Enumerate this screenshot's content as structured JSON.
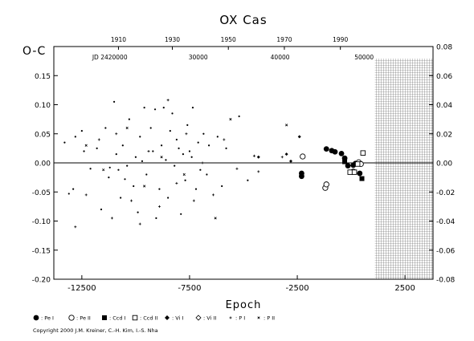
{
  "chart_data": {
    "type": "scatter",
    "title": "OX Cas",
    "ylabel_left": "O-C",
    "xlabel": "Epoch",
    "copyright": "Copyright 2000 J.M. Kreiner, C.-H. Kim, I.-S. Nha",
    "xlim": [
      -13800,
      3800
    ],
    "ylim_left": [
      -0.2,
      0.2
    ],
    "ylim_right": [
      -0.08,
      0.08
    ],
    "grid": false,
    "x_ticks": [
      {
        "value": -12500,
        "label": "-12500"
      },
      {
        "value": -7500,
        "label": "-7500"
      },
      {
        "value": -2500,
        "label": "-2500"
      },
      {
        "value": 2500,
        "label": "2500"
      }
    ],
    "y_ticks_left": [
      {
        "value": 0.15,
        "label": "0.15"
      },
      {
        "value": 0.1,
        "label": "0.10"
      },
      {
        "value": 0.05,
        "label": "0.05"
      },
      {
        "value": 0.0,
        "label": "0.00"
      },
      {
        "value": -0.05,
        "label": "-0.05"
      },
      {
        "value": -0.1,
        "label": "-0.10"
      },
      {
        "value": -0.15,
        "label": "-0.15"
      },
      {
        "value": -0.2,
        "label": "-0.20"
      }
    ],
    "y_ticks_right": [
      {
        "value": 0.08,
        "label": "0.08"
      },
      {
        "value": 0.06,
        "label": "0.06"
      },
      {
        "value": 0.04,
        "label": "0.04"
      },
      {
        "value": 0.02,
        "label": "0.02"
      },
      {
        "value": 0.0,
        "label": "0.00"
      },
      {
        "value": -0.02,
        "label": "-0.02"
      },
      {
        "value": -0.04,
        "label": "-0.04"
      },
      {
        "value": -0.06,
        "label": "-0.06"
      },
      {
        "value": -0.08,
        "label": "-0.08"
      }
    ],
    "year_ticks": [
      {
        "epoch": -10800,
        "label": "1910"
      },
      {
        "epoch": -8300,
        "label": "1930"
      },
      {
        "epoch": -5700,
        "label": "1950"
      },
      {
        "epoch": -3100,
        "label": "1970"
      },
      {
        "epoch": -500,
        "label": "1990"
      }
    ],
    "jd_ticks": [
      {
        "epoch": -11200,
        "label": "JD 2420000"
      },
      {
        "epoch": -7100,
        "label": "30000"
      },
      {
        "epoch": -3300,
        "label": "40000"
      },
      {
        "epoch": 600,
        "label": "50000"
      }
    ],
    "hatched_region": {
      "x_from": 1100,
      "x_to": 3800
    },
    "legend": [
      {
        "symbol": "filled-circle",
        "label": ": Pe I"
      },
      {
        "symbol": "open-circle",
        "label": ": Pe II"
      },
      {
        "symbol": "filled-square",
        "label": ": Ccd I"
      },
      {
        "symbol": "open-square",
        "label": ": Ccd II"
      },
      {
        "symbol": "filled-diamond",
        "label": ": Vi I"
      },
      {
        "symbol": "open-diamond",
        "label": ": Vi II"
      },
      {
        "symbol": "plus",
        "label": ": P I"
      },
      {
        "symbol": "cross",
        "label": ": P II"
      }
    ],
    "series": [
      {
        "name": ": Vi I",
        "symbol": "small-dot",
        "points": [
          [
            -13300,
            0.035
          ],
          [
            -13100,
            -0.053
          ],
          [
            -12900,
            -0.045
          ],
          [
            -12800,
            0.045
          ],
          [
            -12500,
            0.055
          ],
          [
            -12400,
            0.02
          ],
          [
            -12100,
            -0.01
          ],
          [
            -11800,
            0.025
          ],
          [
            -11600,
            -0.08
          ],
          [
            -11400,
            0.06
          ],
          [
            -11250,
            -0.025
          ],
          [
            -11200,
            -0.008
          ],
          [
            -11000,
            0.105
          ],
          [
            -10900,
            0.015
          ],
          [
            -10800,
            -0.012
          ],
          [
            -10700,
            -0.06
          ],
          [
            -10600,
            0.03
          ],
          [
            -10500,
            -0.028
          ],
          [
            -10400,
            -0.005
          ],
          [
            -10300,
            0.075
          ],
          [
            -10100,
            -0.04
          ],
          [
            -10000,
            0.01
          ],
          [
            -9900,
            -0.085
          ],
          [
            -9800,
            0.045
          ],
          [
            -9700,
            0.003
          ],
          [
            -9600,
            0.095
          ],
          [
            -9500,
            -0.02
          ],
          [
            -9300,
            0.06
          ],
          [
            -9200,
            0.02
          ],
          [
            -9100,
            0.092
          ],
          [
            -9050,
            -0.095
          ],
          [
            -8900,
            -0.045
          ],
          [
            -8800,
            0.03
          ],
          [
            -8700,
            0.095
          ],
          [
            -8600,
            0.005
          ],
          [
            -8500,
            -0.06
          ],
          [
            -8400,
            0.055
          ],
          [
            -8300,
            0.085
          ],
          [
            -8200,
            -0.005
          ],
          [
            -8100,
            0.04
          ],
          [
            -8000,
            0.025
          ],
          [
            -7900,
            -0.088
          ],
          [
            -7800,
            0.015
          ],
          [
            -7700,
            -0.03
          ],
          [
            -7600,
            0.065
          ],
          [
            -7500,
            0.02
          ],
          [
            -7400,
            0.01
          ],
          [
            -7350,
            0.095
          ],
          [
            -7200,
            -0.045
          ],
          [
            -7100,
            0.035
          ],
          [
            -7000,
            -0.012
          ],
          [
            -6850,
            0.05
          ],
          [
            -6700,
            -0.02
          ],
          [
            -6600,
            0.03
          ],
          [
            -6200,
            0.045
          ],
          [
            -6000,
            -0.04
          ],
          [
            -5800,
            0.025
          ],
          [
            -5200,
            0.08
          ],
          [
            -4800,
            -0.03
          ]
        ]
      },
      {
        "name": ": P I",
        "symbol": "plus",
        "points": [
          [
            -12800,
            -0.11
          ],
          [
            -12300,
            -0.055
          ],
          [
            -11700,
            0.04
          ],
          [
            -11100,
            -0.095
          ],
          [
            -10900,
            0.05
          ],
          [
            -10200,
            -0.065
          ],
          [
            -9800,
            -0.105
          ],
          [
            -9400,
            0.02
          ],
          [
            -8900,
            -0.075
          ],
          [
            -8500,
            0.108
          ],
          [
            -8100,
            -0.035
          ],
          [
            -7650,
            0.05
          ],
          [
            -7300,
            -0.065
          ],
          [
            -6900,
            0.0
          ],
          [
            -6400,
            -0.055
          ],
          [
            -5900,
            0.04
          ],
          [
            -5300,
            -0.01
          ],
          [
            -4500,
            0.012
          ],
          [
            -4300,
            -0.015
          ],
          [
            -3200,
            0.01
          ]
        ]
      },
      {
        "name": ": P II",
        "symbol": "cross",
        "points": [
          [
            -12300,
            0.03
          ],
          [
            -11500,
            -0.012
          ],
          [
            -10400,
            0.06
          ],
          [
            -9600,
            -0.04
          ],
          [
            -8800,
            0.01
          ],
          [
            -7750,
            -0.02
          ],
          [
            -6300,
            -0.095
          ],
          [
            -5600,
            0.075
          ],
          [
            -3000,
            0.065
          ]
        ]
      },
      {
        "name": ": Vi I",
        "symbol": "small-diamond",
        "points": [
          [
            -2400,
            0.045
          ],
          [
            -3000,
            0.015
          ],
          [
            -4300,
            0.01
          ],
          [
            -2800,
            0.003
          ]
        ]
      },
      {
        "name": ": Pe I",
        "symbol": "filled-circle",
        "points": [
          [
            -2300,
            -0.018
          ],
          [
            -2300,
            -0.023
          ],
          [
            -1150,
            0.024
          ],
          [
            -900,
            0.021
          ],
          [
            -750,
            0.019
          ],
          [
            -450,
            0.016
          ],
          [
            -300,
            0.008
          ],
          [
            -150,
            -0.005
          ],
          [
            100,
            -0.004
          ],
          [
            200,
            -0.001
          ],
          [
            400,
            -0.018
          ]
        ]
      },
      {
        "name": ": Pe II",
        "symbol": "open-circle",
        "points": [
          [
            -2250,
            0.011
          ],
          [
            -1200,
            -0.043
          ],
          [
            -1150,
            -0.037
          ],
          [
            100,
            -0.015
          ],
          [
            350,
            0.001
          ],
          [
            450,
            -0.002
          ]
        ]
      },
      {
        "name": ": Ccd I",
        "symbol": "filled-square",
        "points": [
          [
            -300,
            0.002
          ],
          [
            500,
            -0.027
          ]
        ]
      },
      {
        "name": ": Ccd II",
        "symbol": "open-square",
        "points": [
          [
            550,
            0.017
          ],
          [
            -50,
            -0.016
          ],
          [
            300,
            -0.002
          ],
          [
            150,
            -0.016
          ]
        ]
      }
    ]
  }
}
